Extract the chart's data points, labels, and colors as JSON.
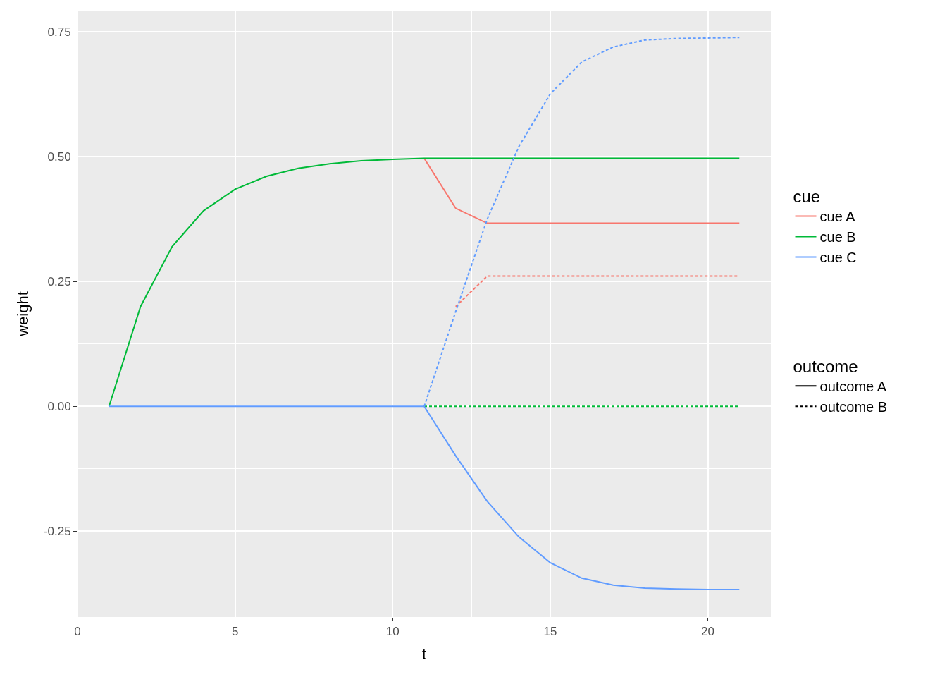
{
  "chart_data": {
    "type": "line",
    "xlabel": "t",
    "ylabel": "weight",
    "legend_title": [
      "cue",
      "outcome"
    ],
    "annotations": [
      "outcome A",
      "outcome B"
    ],
    "x": [
      1,
      2,
      3,
      4,
      5,
      6,
      7,
      8,
      9,
      10,
      11,
      12,
      13,
      14,
      15,
      16,
      17,
      18,
      19,
      20,
      21
    ],
    "series": [
      {
        "name": "cue A",
        "line_style": "solid",
        "color": "#f8766d",
        "values": [
          null,
          null,
          null,
          null,
          null,
          null,
          null,
          null,
          null,
          null,
          0.497,
          0.397,
          0.367,
          0.367,
          0.367,
          0.367,
          0.367,
          0.367,
          0.367,
          0.367,
          0.367
        ]
      },
      {
        "line_style": "dashed",
        "color": "#f8766d",
        "values": [
          null,
          null,
          null,
          null,
          null,
          null,
          null,
          null,
          null,
          null,
          null,
          0.2,
          0.261,
          0.261,
          0.261,
          0.261,
          0.261,
          0.261,
          0.261,
          0.261,
          0.261
        ]
      },
      {
        "name": "cue B",
        "line_style": "solid",
        "color": "#00ba38",
        "values": [
          0,
          0.2,
          0.32,
          0.392,
          0.435,
          0.461,
          0.477,
          0.486,
          0.492,
          0.495,
          0.497,
          0.497,
          0.497,
          0.497,
          0.497,
          0.497,
          0.497,
          0.497,
          0.497,
          0.497,
          0.497
        ]
      },
      {
        "line_style": "dashed",
        "color": "#00ba38",
        "values": [
          null,
          null,
          null,
          null,
          null,
          null,
          null,
          null,
          null,
          null,
          0,
          0,
          0,
          0,
          0,
          0,
          0,
          0,
          0,
          0,
          0
        ]
      },
      {
        "name": "cue C",
        "line_style": "solid",
        "color": "#619cff",
        "values": [
          0,
          0,
          0,
          0,
          0,
          0,
          0,
          0,
          0,
          0,
          0,
          -0.099,
          -0.19,
          -0.261,
          -0.313,
          -0.344,
          -0.358,
          -0.364,
          -0.366,
          -0.367,
          -0.367
        ]
      },
      {
        "line_style": "dashed",
        "color": "#619cff",
        "values": [
          null,
          null,
          null,
          null,
          null,
          null,
          null,
          null,
          null,
          null,
          0,
          0.19,
          0.375,
          0.52,
          0.626,
          0.69,
          0.72,
          0.734,
          0.737,
          0.738,
          0.739
        ]
      }
    ],
    "xlim": [
      0,
      22
    ],
    "xticks": [
      0,
      5,
      10,
      15,
      20
    ],
    "ylim": [
      -0.422,
      0.793
    ],
    "yticks": [
      {
        "value": -0.25,
        "label": "-0.25"
      },
      {
        "value": 0,
        "label": "0.00"
      },
      {
        "value": 0.25,
        "label": "0.25"
      },
      {
        "value": 0.5,
        "label": "0.50"
      },
      {
        "value": 0.75,
        "label": "0.75"
      }
    ],
    "grid": true,
    "legend": "right",
    "marker": "none"
  }
}
